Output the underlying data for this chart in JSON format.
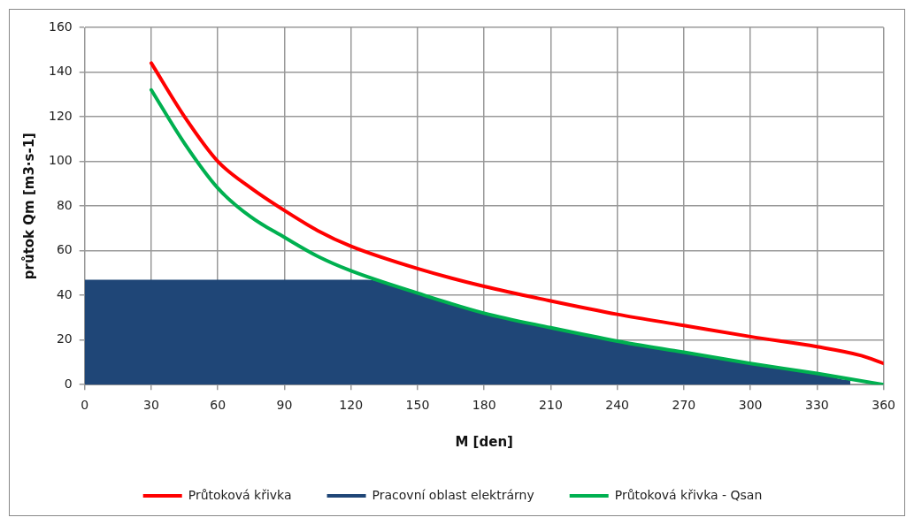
{
  "chart_data": {
    "type": "line",
    "xlabel": "M [den]",
    "ylabel": "průtok Qm [m3·s-1]",
    "xlim": [
      0,
      360
    ],
    "xticks": [
      0,
      30,
      60,
      90,
      120,
      150,
      180,
      210,
      240,
      270,
      300,
      330,
      360
    ],
    "ylim": [
      0,
      160
    ],
    "yticks": [
      0,
      20,
      40,
      60,
      80,
      100,
      120,
      140,
      160
    ],
    "grid": true,
    "legend": "bottom",
    "marker": "none",
    "line_style": "solid",
    "series": [
      {
        "name": "Průtoková křivka",
        "color": "#ff0000",
        "x": [
          30,
          45,
          60,
          75,
          90,
          105,
          120,
          150,
          180,
          210,
          240,
          270,
          300,
          330,
          350,
          360
        ],
        "values": [
          144,
          120,
          100,
          88,
          78,
          69,
          62,
          52,
          44,
          37.5,
          31.5,
          26.5,
          21.5,
          17,
          13,
          9.5
        ]
      },
      {
        "name": "Pracovní oblast elektrárny",
        "type": "area",
        "color": "#1f4677",
        "x": [
          0,
          127,
          150,
          180,
          210,
          240,
          270,
          300,
          330,
          345,
          345
        ],
        "values": [
          47,
          47,
          41,
          32,
          25.5,
          19.5,
          14.5,
          9.5,
          5,
          2,
          0
        ]
      },
      {
        "name": "Průtoková křivka - Qsan",
        "color": "#00b050",
        "x": [
          30,
          45,
          60,
          75,
          90,
          105,
          120,
          150,
          180,
          210,
          240,
          270,
          300,
          330,
          360
        ],
        "values": [
          132,
          108,
          88,
          75,
          66,
          57.5,
          51,
          41,
          32,
          25.5,
          19.5,
          14.5,
          9.5,
          5,
          0
        ]
      }
    ]
  }
}
